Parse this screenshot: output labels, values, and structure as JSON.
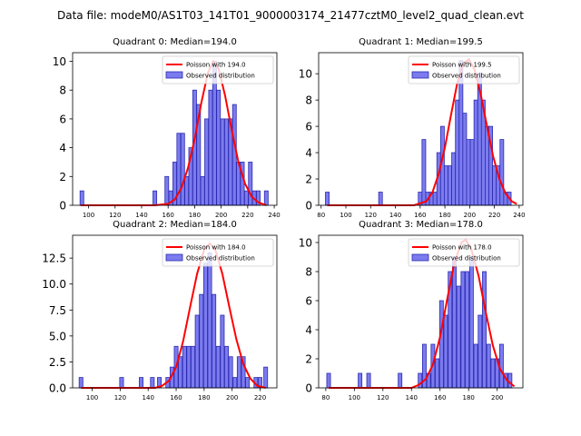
{
  "suptitle": "Data file: modeM0/AS1T03_141T01_9000003174_21477cztM0_level2_quad_clean.evt",
  "colors": {
    "bar_fill": "#7b7bef",
    "bar_edge": "#2b2bb0",
    "poisson_line": "#ff0000",
    "axes": "#000000",
    "background": "#ffffff"
  },
  "chart_data": [
    {
      "type": "bar",
      "title": "Quadrant 0: Median=194.0",
      "xlim": [
        88,
        242
      ],
      "ylim": [
        0,
        10.6
      ],
      "xticks": [
        100,
        120,
        140,
        160,
        180,
        200,
        220,
        240
      ],
      "yticks": [
        0,
        2,
        4,
        6,
        8,
        10
      ],
      "bin_width": 2.8,
      "legend": {
        "placement": "top-right",
        "line_label": "Poisson with 194.0",
        "bar_label": "Observed distribution"
      },
      "bars": [
        [
          95,
          1
        ],
        [
          150,
          1
        ],
        [
          159,
          2
        ],
        [
          162,
          1
        ],
        [
          165,
          3
        ],
        [
          168,
          5
        ],
        [
          171,
          5
        ],
        [
          174,
          2
        ],
        [
          177,
          4
        ],
        [
          180,
          8
        ],
        [
          183,
          7
        ],
        [
          186,
          2
        ],
        [
          189,
          6
        ],
        [
          192,
          8
        ],
        [
          195,
          10
        ],
        [
          198,
          8
        ],
        [
          201,
          6
        ],
        [
          204,
          6
        ],
        [
          207,
          6
        ],
        [
          210,
          7
        ],
        [
          213,
          3
        ],
        [
          216,
          3
        ],
        [
          219,
          1
        ],
        [
          222,
          3
        ],
        [
          225,
          1
        ],
        [
          228,
          1
        ],
        [
          234,
          1
        ]
      ],
      "poisson": [
        [
          94,
          0
        ],
        [
          150,
          0
        ],
        [
          160,
          0.1
        ],
        [
          165,
          0.4
        ],
        [
          170,
          1.2
        ],
        [
          175,
          2.6
        ],
        [
          180,
          4.6
        ],
        [
          185,
          7.1
        ],
        [
          190,
          9.2
        ],
        [
          194,
          10
        ],
        [
          198,
          9.5
        ],
        [
          203,
          7.6
        ],
        [
          208,
          5.2
        ],
        [
          213,
          3.0
        ],
        [
          218,
          1.5
        ],
        [
          223,
          0.6
        ],
        [
          228,
          0.2
        ],
        [
          234,
          0
        ]
      ]
    },
    {
      "type": "bar",
      "title": "Quadrant 1: Median=199.5",
      "xlim": [
        78,
        243
      ],
      "ylim": [
        0,
        11.6
      ],
      "xticks": [
        80,
        100,
        120,
        140,
        160,
        180,
        200,
        220,
        240
      ],
      "yticks": [
        0,
        2,
        4,
        6,
        8,
        10
      ],
      "bin_width": 3.0,
      "legend": {
        "placement": "top-right",
        "line_label": "Poisson with 199.5",
        "bar_label": "Observed distribution"
      },
      "bars": [
        [
          85,
          1
        ],
        [
          128,
          1
        ],
        [
          160,
          1
        ],
        [
          163,
          5
        ],
        [
          166,
          1
        ],
        [
          169,
          1
        ],
        [
          172,
          1
        ],
        [
          175,
          4
        ],
        [
          178,
          6
        ],
        [
          181,
          3
        ],
        [
          184,
          3
        ],
        [
          187,
          4
        ],
        [
          190,
          8
        ],
        [
          193,
          11
        ],
        [
          196,
          7
        ],
        [
          199,
          5
        ],
        [
          202,
          5
        ],
        [
          205,
          8
        ],
        [
          208,
          10
        ],
        [
          211,
          8
        ],
        [
          214,
          6
        ],
        [
          217,
          6
        ],
        [
          220,
          3
        ],
        [
          223,
          3
        ],
        [
          226,
          5
        ],
        [
          229,
          1
        ],
        [
          232,
          1
        ]
      ],
      "poisson": [
        [
          85,
          0
        ],
        [
          155,
          0
        ],
        [
          165,
          0.3
        ],
        [
          170,
          1.0
        ],
        [
          175,
          2.4
        ],
        [
          180,
          4.4
        ],
        [
          185,
          6.9
        ],
        [
          190,
          9.3
        ],
        [
          195,
          10.8
        ],
        [
          199.5,
          11.1
        ],
        [
          204,
          10.3
        ],
        [
          209,
          8.4
        ],
        [
          214,
          6.0
        ],
        [
          219,
          3.7
        ],
        [
          224,
          2.0
        ],
        [
          229,
          0.9
        ],
        [
          234,
          0.3
        ],
        [
          238,
          0.1
        ]
      ]
    },
    {
      "type": "bar",
      "title": "Quadrant 2: Median=184.0",
      "xlim": [
        86,
        232
      ],
      "ylim": [
        0,
        14.7
      ],
      "xticks": [
        100,
        120,
        140,
        160,
        180,
        200,
        220
      ],
      "yticks": [
        0,
        2.5,
        5.0,
        7.5,
        10.0,
        12.5
      ],
      "ytick_labels": [
        "0.0",
        "2.5",
        "5.0",
        "7.5",
        "10.0",
        "12.5"
      ],
      "bin_width": 2.7,
      "legend": {
        "placement": "top-right",
        "line_label": "Poisson with 184.0",
        "bar_label": "Observed distribution"
      },
      "bars": [
        [
          92,
          1
        ],
        [
          121,
          1
        ],
        [
          135,
          1
        ],
        [
          143,
          1
        ],
        [
          148,
          1
        ],
        [
          154,
          1
        ],
        [
          157,
          2
        ],
        [
          160,
          4
        ],
        [
          163,
          3
        ],
        [
          166,
          4
        ],
        [
          169,
          4
        ],
        [
          172,
          4
        ],
        [
          175,
          7
        ],
        [
          178,
          9
        ],
        [
          181,
          12
        ],
        [
          184,
          13
        ],
        [
          187,
          9
        ],
        [
          190,
          4
        ],
        [
          193,
          7
        ],
        [
          196,
          4
        ],
        [
          199,
          3
        ],
        [
          202,
          1
        ],
        [
          205,
          3
        ],
        [
          208,
          3
        ],
        [
          211,
          1
        ],
        [
          217,
          1
        ],
        [
          220,
          1
        ],
        [
          224,
          2
        ]
      ],
      "poisson": [
        [
          92,
          0
        ],
        [
          145,
          0
        ],
        [
          150,
          0.2
        ],
        [
          155,
          0.7
        ],
        [
          160,
          2.0
        ],
        [
          165,
          4.5
        ],
        [
          170,
          7.8
        ],
        [
          175,
          11.0
        ],
        [
          180,
          13.3
        ],
        [
          184,
          13.9
        ],
        [
          188,
          13.3
        ],
        [
          193,
          11.0
        ],
        [
          198,
          7.8
        ],
        [
          203,
          4.7
        ],
        [
          208,
          2.3
        ],
        [
          213,
          0.9
        ],
        [
          218,
          0.2
        ],
        [
          224,
          0
        ]
      ]
    },
    {
      "type": "bar",
      "title": "Quadrant 3: Median=178.0",
      "xlim": [
        75,
        218
      ],
      "ylim": [
        0,
        10.5
      ],
      "xticks": [
        80,
        100,
        120,
        140,
        160,
        180,
        200
      ],
      "yticks": [
        0,
        2,
        4,
        6,
        8,
        10
      ],
      "bin_width": 2.6,
      "legend": {
        "placement": "top-right",
        "line_label": "Poisson with 178.0",
        "bar_label": "Observed distribution"
      },
      "bars": [
        [
          82,
          1
        ],
        [
          104,
          1
        ],
        [
          110,
          1
        ],
        [
          132,
          1
        ],
        [
          146,
          1
        ],
        [
          149,
          3
        ],
        [
          152,
          1
        ],
        [
          155,
          3
        ],
        [
          158,
          2
        ],
        [
          161,
          6
        ],
        [
          164,
          5
        ],
        [
          167,
          8
        ],
        [
          170,
          9
        ],
        [
          173,
          7
        ],
        [
          176,
          8
        ],
        [
          179,
          8
        ],
        [
          182,
          9
        ],
        [
          185,
          3
        ],
        [
          188,
          5
        ],
        [
          191,
          8
        ],
        [
          194,
          3
        ],
        [
          197,
          2
        ],
        [
          200,
          2
        ],
        [
          203,
          3
        ],
        [
          206,
          1
        ],
        [
          209,
          1
        ]
      ],
      "poisson": [
        [
          82,
          0
        ],
        [
          140,
          0
        ],
        [
          145,
          0.2
        ],
        [
          150,
          0.6
        ],
        [
          155,
          1.6
        ],
        [
          160,
          3.5
        ],
        [
          165,
          6.1
        ],
        [
          170,
          8.6
        ],
        [
          175,
          10.0
        ],
        [
          178,
          10.2
        ],
        [
          182,
          9.5
        ],
        [
          187,
          7.7
        ],
        [
          192,
          5.2
        ],
        [
          197,
          2.9
        ],
        [
          202,
          1.3
        ],
        [
          207,
          0.5
        ],
        [
          212,
          0.1
        ]
      ]
    }
  ]
}
